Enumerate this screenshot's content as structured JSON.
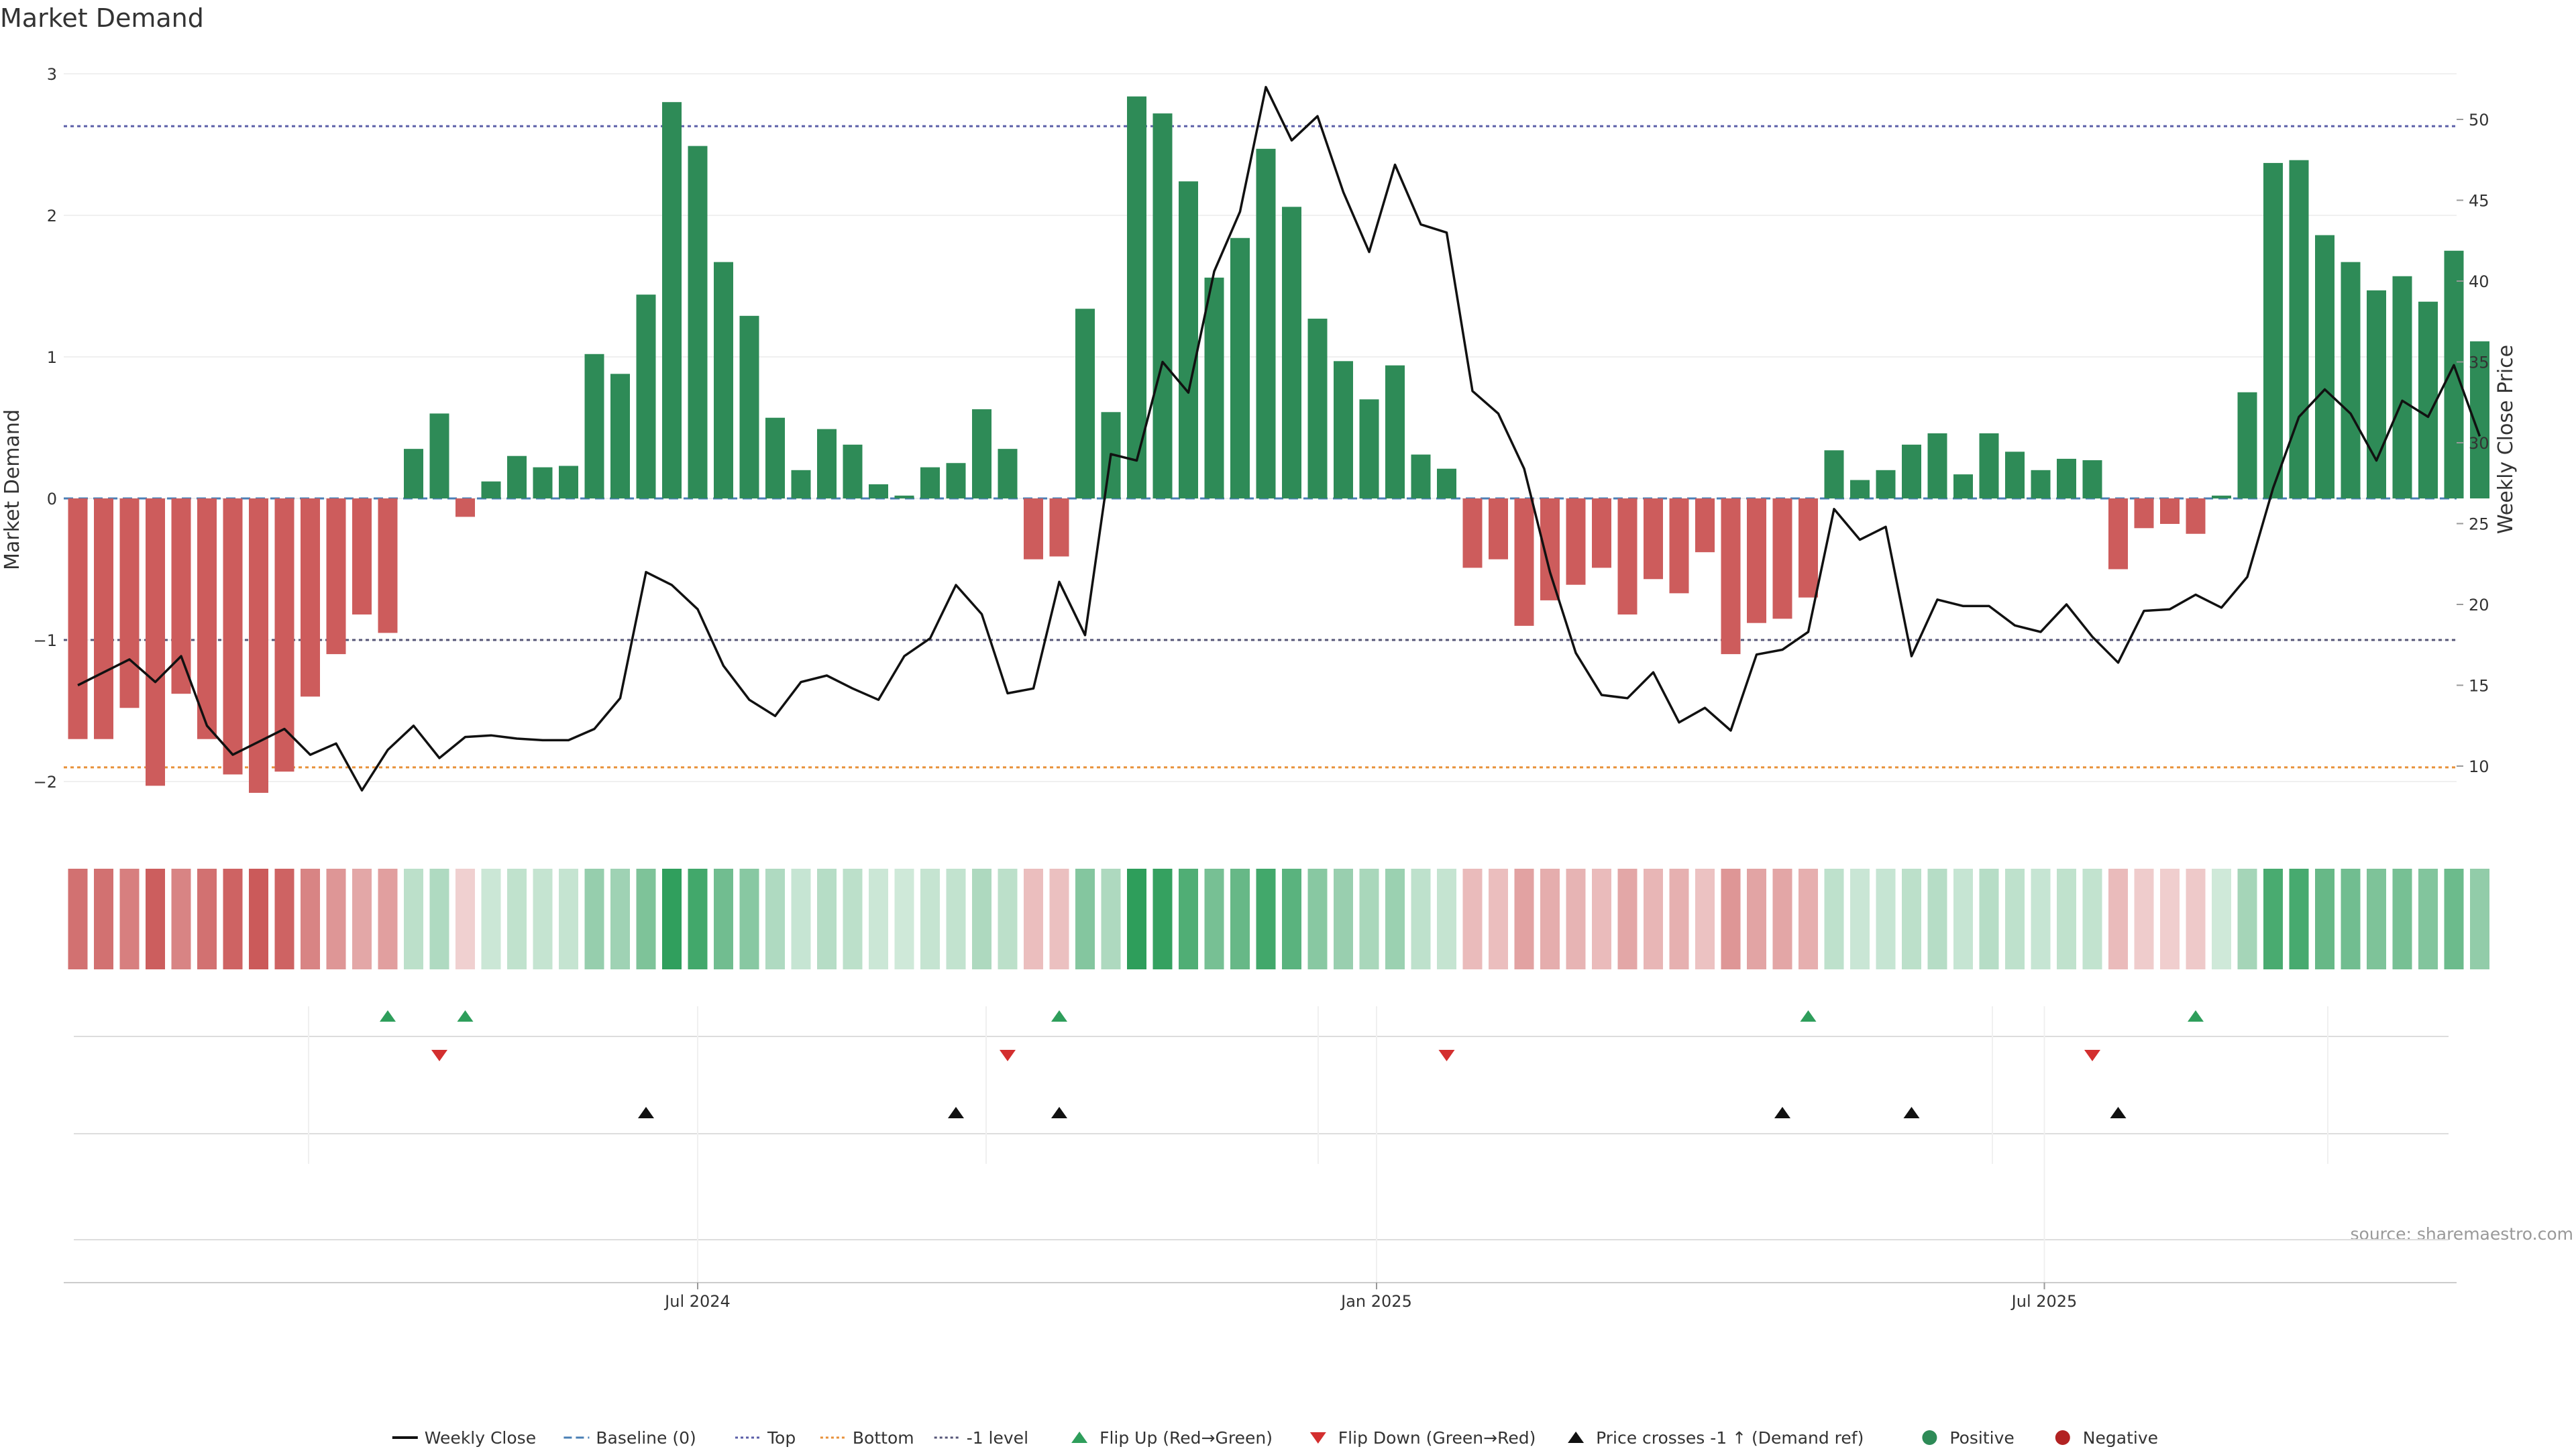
{
  "chart_data": {
    "type": "bar",
    "title": "Market Demand",
    "ylabel": "Market Demand",
    "y2label": "Weekly Close Price",
    "ylim": [
      -2.4,
      3.0
    ],
    "y2lim": [
      7,
      57
    ],
    "yticks": [
      3,
      2,
      1,
      0,
      -1,
      -2
    ],
    "y2ticks": [
      50,
      45,
      40,
      35,
      30,
      25,
      20,
      15,
      10
    ],
    "x_start": "2024-01-15",
    "x_step_days": 7,
    "x_ticks": [
      {
        "label": "Jul 2024",
        "date": "2024-07-01"
      },
      {
        "label": "Jan 2025",
        "date": "2025-01-01"
      },
      {
        "label": "Jul 2025",
        "date": "2025-07-01"
      }
    ],
    "reference_lines": [
      {
        "name": "Top",
        "value": 2.63,
        "color": "#5b5fa8"
      },
      {
        "name": "Bottom",
        "value": -1.9,
        "color": "#e8913a"
      },
      {
        "name": "-1 level",
        "value": -1,
        "color": "#555577"
      },
      {
        "name": "Baseline (0)",
        "value": 0,
        "color": "#4a7fb5"
      }
    ],
    "series": [
      {
        "name": "Market Demand",
        "values": [
          -1.7,
          -1.7,
          -1.48,
          -2.03,
          -1.38,
          -1.7,
          -1.95,
          -2.08,
          -1.93,
          -1.4,
          -1.1,
          -0.82,
          -0.95,
          0.35,
          0.6,
          -0.13,
          0.12,
          0.3,
          0.22,
          0.23,
          1.02,
          0.88,
          1.44,
          2.8,
          2.49,
          1.67,
          1.29,
          0.57,
          0.2,
          0.49,
          0.38,
          0.1,
          0.02,
          0.22,
          0.25,
          0.63,
          0.35,
          -0.43,
          -0.41,
          1.34,
          0.61,
          2.84,
          2.72,
          2.24,
          1.56,
          1.84,
          2.47,
          2.06,
          1.27,
          0.97,
          0.7,
          0.94,
          0.31,
          0.21,
          -0.49,
          -0.43,
          -0.9,
          -0.72,
          -0.61,
          -0.49,
          -0.82,
          -0.57,
          -0.67,
          -0.38,
          -1.1,
          -0.88,
          -0.85,
          -0.7,
          0.34,
          0.13,
          0.2,
          0.38,
          0.46,
          0.17,
          0.46,
          0.33,
          0.2,
          0.28,
          0.27,
          -0.5,
          -0.21,
          -0.18,
          -0.25,
          0.02,
          0.75,
          2.37,
          2.39,
          1.86,
          1.67,
          1.47,
          1.57,
          1.39,
          1.75,
          1.11
        ]
      },
      {
        "name": "Weekly Close",
        "values": [
          15.0,
          15.8,
          16.6,
          15.2,
          16.8,
          12.5,
          10.7,
          11.5,
          12.3,
          10.7,
          11.4,
          8.5,
          11.0,
          12.5,
          10.5,
          11.8,
          11.9,
          11.7,
          11.6,
          11.6,
          12.3,
          14.2,
          22.0,
          21.2,
          19.7,
          16.2,
          14.1,
          13.1,
          15.2,
          15.6,
          14.8,
          14.1,
          16.8,
          17.9,
          21.2,
          19.4,
          14.5,
          14.8,
          21.4,
          18.1,
          29.3,
          28.9,
          35.0,
          33.1,
          40.6,
          44.3,
          52.0,
          48.7,
          50.2,
          45.5,
          41.8,
          47.2,
          43.5,
          43.0,
          33.2,
          31.8,
          28.4,
          22.0,
          17.0,
          14.4,
          14.2,
          15.8,
          12.7,
          13.6,
          12.2,
          16.9,
          17.2,
          18.3,
          25.9,
          24.0,
          24.8,
          16.8,
          20.3,
          19.9,
          19.9,
          18.7,
          18.3,
          20.0,
          18.0,
          16.4,
          19.6,
          19.7,
          20.6,
          19.8,
          21.7,
          27.2,
          31.6,
          33.3,
          31.8,
          28.9,
          32.6,
          31.6,
          34.8,
          30.4
        ]
      }
    ],
    "flip_up_weeks": [
      12,
      15,
      38,
      67,
      82
    ],
    "flip_down_weeks": [
      14,
      36,
      53,
      78
    ],
    "price_cross_weeks": [
      22,
      34,
      38,
      66,
      71,
      79
    ],
    "legend": {
      "placement": "bottom-center",
      "entries": [
        {
          "label": "Weekly Close",
          "kind": "line",
          "color": "#111111"
        },
        {
          "label": "Baseline (0)",
          "kind": "dash",
          "color": "#4a7fb5"
        },
        {
          "label": "Top",
          "kind": "dot",
          "color": "#5b5fa8"
        },
        {
          "label": "Bottom",
          "kind": "dot",
          "color": "#e8913a"
        },
        {
          "label": "-1 level",
          "kind": "dot",
          "color": "#555577"
        },
        {
          "label": "Flip Up (Red→Green)",
          "kind": "up",
          "color": "#2e9e5b"
        },
        {
          "label": "Flip Down (Green→Red)",
          "kind": "down",
          "color": "#d32f2f"
        },
        {
          "label": "Price crosses -1 ↑ (Demand ref)",
          "kind": "up",
          "color": "#111111"
        },
        {
          "label": "Positive",
          "kind": "circle",
          "color": "#2e8b57"
        },
        {
          "label": "Negative",
          "kind": "circle",
          "color": "#b22222"
        }
      ]
    },
    "source": "source: sharemaestro.com",
    "colors": {
      "positive": "#2e8b57",
      "negative": "#cd5c5c",
      "price": "#111111"
    }
  }
}
